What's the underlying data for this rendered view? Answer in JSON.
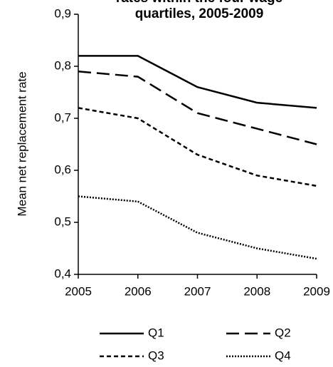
{
  "chart_data": {
    "type": "line",
    "title": [
      "rates within the four wage",
      "quartiles,  2005-2009"
    ],
    "y_label": "Mean net replacement rate",
    "x": [
      2005,
      2006,
      2007,
      2008,
      2009
    ],
    "xlim": [
      2005,
      2009
    ],
    "xticks": [
      2005,
      2006,
      2007,
      2008,
      2009
    ],
    "ylim": [
      0.4,
      0.9
    ],
    "yticks": [
      {
        "value": 0.4,
        "label": "0,4"
      },
      {
        "value": 0.5,
        "label": "0,5"
      },
      {
        "value": 0.6,
        "label": "0,6"
      },
      {
        "value": 0.7,
        "label": "0,7"
      },
      {
        "value": 0.8,
        "label": "0,8"
      },
      {
        "value": 0.9,
        "label": "0,9"
      }
    ],
    "grid": false,
    "legend": "bottom",
    "series": [
      {
        "name": "Q1",
        "color": "#000000",
        "dash": "none",
        "values": [
          0.82,
          0.82,
          0.76,
          0.73,
          0.72
        ]
      },
      {
        "name": "Q2",
        "color": "#000000",
        "dash": "18,8",
        "values": [
          0.79,
          0.78,
          0.71,
          0.68,
          0.65
        ]
      },
      {
        "name": "Q3",
        "color": "#000000",
        "dash": "6,4",
        "values": [
          0.72,
          0.7,
          0.63,
          0.59,
          0.57
        ]
      },
      {
        "name": "Q4",
        "color": "#000000",
        "dash": "2,2",
        "values": [
          0.55,
          0.54,
          0.48,
          0.45,
          0.43
        ]
      }
    ]
  }
}
